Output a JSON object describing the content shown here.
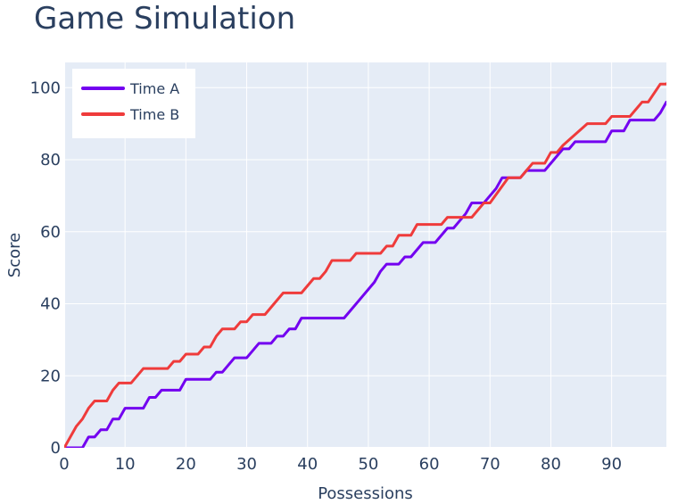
{
  "chart_data": {
    "type": "line",
    "title": "Game Simulation",
    "xlabel": "Possessions",
    "ylabel": "Score",
    "xlim": [
      0,
      99
    ],
    "ylim": [
      0,
      107
    ],
    "x_ticks": [
      0,
      10,
      20,
      30,
      40,
      50,
      60,
      70,
      80,
      90
    ],
    "y_ticks": [
      0,
      20,
      40,
      60,
      80,
      100
    ],
    "grid": true,
    "legend_position": "top-left",
    "background": "#e5ecf6",
    "series": [
      {
        "name": "Time A",
        "color": "#7300f0",
        "points": [
          [
            0,
            0
          ],
          [
            3,
            0
          ],
          [
            4,
            3
          ],
          [
            5,
            3
          ],
          [
            6,
            5
          ],
          [
            7,
            5
          ],
          [
            8,
            8
          ],
          [
            9,
            8
          ],
          [
            10,
            11
          ],
          [
            13,
            11
          ],
          [
            14,
            14
          ],
          [
            15,
            14
          ],
          [
            16,
            16
          ],
          [
            19,
            16
          ],
          [
            20,
            19
          ],
          [
            24,
            19
          ],
          [
            25,
            21
          ],
          [
            26,
            21
          ],
          [
            28,
            25
          ],
          [
            30,
            25
          ],
          [
            32,
            29
          ],
          [
            34,
            29
          ],
          [
            35,
            31
          ],
          [
            36,
            31
          ],
          [
            37,
            33
          ],
          [
            38,
            33
          ],
          [
            39,
            36
          ],
          [
            46,
            36
          ],
          [
            49,
            42
          ],
          [
            51,
            46
          ],
          [
            52,
            49
          ],
          [
            53,
            51
          ],
          [
            55,
            51
          ],
          [
            56,
            53
          ],
          [
            57,
            53
          ],
          [
            59,
            57
          ],
          [
            61,
            57
          ],
          [
            63,
            61
          ],
          [
            64,
            61
          ],
          [
            66,
            65
          ],
          [
            67,
            68
          ],
          [
            69,
            68
          ],
          [
            71,
            72
          ],
          [
            72,
            75
          ],
          [
            75,
            75
          ],
          [
            76,
            77
          ],
          [
            79,
            77
          ],
          [
            82,
            83
          ],
          [
            83,
            83
          ],
          [
            84,
            85
          ],
          [
            89,
            85
          ],
          [
            90,
            88
          ],
          [
            92,
            88
          ],
          [
            93,
            91
          ],
          [
            97,
            91
          ],
          [
            98,
            93
          ],
          [
            99,
            96
          ],
          [
            100,
            96
          ]
        ]
      },
      {
        "name": "Time B",
        "color": "#ef3b3b",
        "points": [
          [
            0,
            0
          ],
          [
            1,
            3
          ],
          [
            2,
            6
          ],
          [
            3,
            8
          ],
          [
            4,
            11
          ],
          [
            5,
            13
          ],
          [
            7,
            13
          ],
          [
            8,
            16
          ],
          [
            9,
            18
          ],
          [
            11,
            18
          ],
          [
            13,
            22
          ],
          [
            17,
            22
          ],
          [
            18,
            24
          ],
          [
            19,
            24
          ],
          [
            20,
            26
          ],
          [
            22,
            26
          ],
          [
            23,
            28
          ],
          [
            24,
            28
          ],
          [
            25,
            31
          ],
          [
            26,
            33
          ],
          [
            28,
            33
          ],
          [
            29,
            35
          ],
          [
            30,
            35
          ],
          [
            31,
            37
          ],
          [
            33,
            37
          ],
          [
            36,
            43
          ],
          [
            39,
            43
          ],
          [
            41,
            47
          ],
          [
            42,
            47
          ],
          [
            43,
            49
          ],
          [
            44,
            52
          ],
          [
            47,
            52
          ],
          [
            48,
            54
          ],
          [
            52,
            54
          ],
          [
            53,
            56
          ],
          [
            54,
            56
          ],
          [
            55,
            59
          ],
          [
            57,
            59
          ],
          [
            58,
            62
          ],
          [
            62,
            62
          ],
          [
            63,
            64
          ],
          [
            67,
            64
          ],
          [
            69,
            68
          ],
          [
            70,
            68
          ],
          [
            73,
            75
          ],
          [
            75,
            75
          ],
          [
            76,
            77
          ],
          [
            77,
            79
          ],
          [
            79,
            79
          ],
          [
            80,
            82
          ],
          [
            81,
            82
          ],
          [
            82,
            84
          ],
          [
            86,
            90
          ],
          [
            89,
            90
          ],
          [
            90,
            92
          ],
          [
            93,
            92
          ],
          [
            94,
            94
          ],
          [
            95,
            96
          ],
          [
            96,
            96
          ],
          [
            98,
            101
          ],
          [
            99,
            101
          ],
          [
            100,
            103
          ],
          [
            101,
            103
          ]
        ]
      }
    ]
  }
}
